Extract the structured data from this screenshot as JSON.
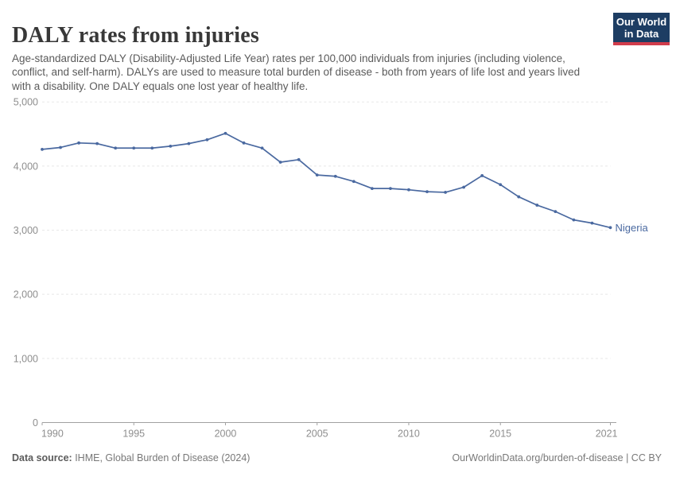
{
  "header": {
    "title": "DALY rates from injuries",
    "subtitle": "Age-standardized DALY (Disability-Adjusted Life Year) rates per 100,000 individuals from injuries (including violence, conflict, and self-harm). DALYs are used to measure total burden of disease - both from years of life lost and years lived with a disability. One DALY equals one lost year of healthy life.",
    "logo": {
      "line1": "Our World",
      "line2": "in Data",
      "bg_color": "#1d3d63",
      "stripe_color": "#d13c4b"
    }
  },
  "chart_data": {
    "type": "line",
    "title": "DALY rates from injuries",
    "xlabel": "",
    "ylabel": "",
    "x": [
      1990,
      1991,
      1992,
      1993,
      1994,
      1995,
      1996,
      1997,
      1998,
      1999,
      2000,
      2001,
      2002,
      2003,
      2004,
      2005,
      2006,
      2007,
      2008,
      2009,
      2010,
      2011,
      2012,
      2013,
      2014,
      2015,
      2016,
      2017,
      2018,
      2019,
      2020,
      2021
    ],
    "series": [
      {
        "name": "Nigeria",
        "color": "#4a69a0",
        "values": [
          4260,
          4290,
          4360,
          4350,
          4280,
          4280,
          4280,
          4310,
          4350,
          4410,
          4510,
          4360,
          4280,
          4060,
          4100,
          3860,
          3840,
          3760,
          3650,
          3650,
          3630,
          3600,
          3590,
          3670,
          3850,
          3710,
          3520,
          3390,
          3290,
          3160,
          3110,
          3040
        ]
      }
    ],
    "xlim": [
      1990,
      2021
    ],
    "ylim": [
      0,
      5000
    ],
    "xticks": [
      1990,
      1995,
      2000,
      2005,
      2010,
      2015,
      2021
    ],
    "yticks": [
      {
        "value": 0,
        "label": "0"
      },
      {
        "value": 1000,
        "label": "1,000"
      },
      {
        "value": 2000,
        "label": "2,000"
      },
      {
        "value": 3000,
        "label": "3,000"
      },
      {
        "value": 4000,
        "label": "4,000"
      },
      {
        "value": 5000,
        "label": "5,000"
      }
    ],
    "grid": "horizontal-dashed",
    "legend_position": "line-end-label",
    "colors": {
      "gridline": "#e8e8e8",
      "axis": "#a1a1a1",
      "tick_label": "#8e8e8e"
    }
  },
  "footer": {
    "source_label": "Data source:",
    "source_text": " IHME, Global Burden of Disease (2024)",
    "credit_text": "OurWorldinData.org/burden-of-disease | CC BY"
  }
}
